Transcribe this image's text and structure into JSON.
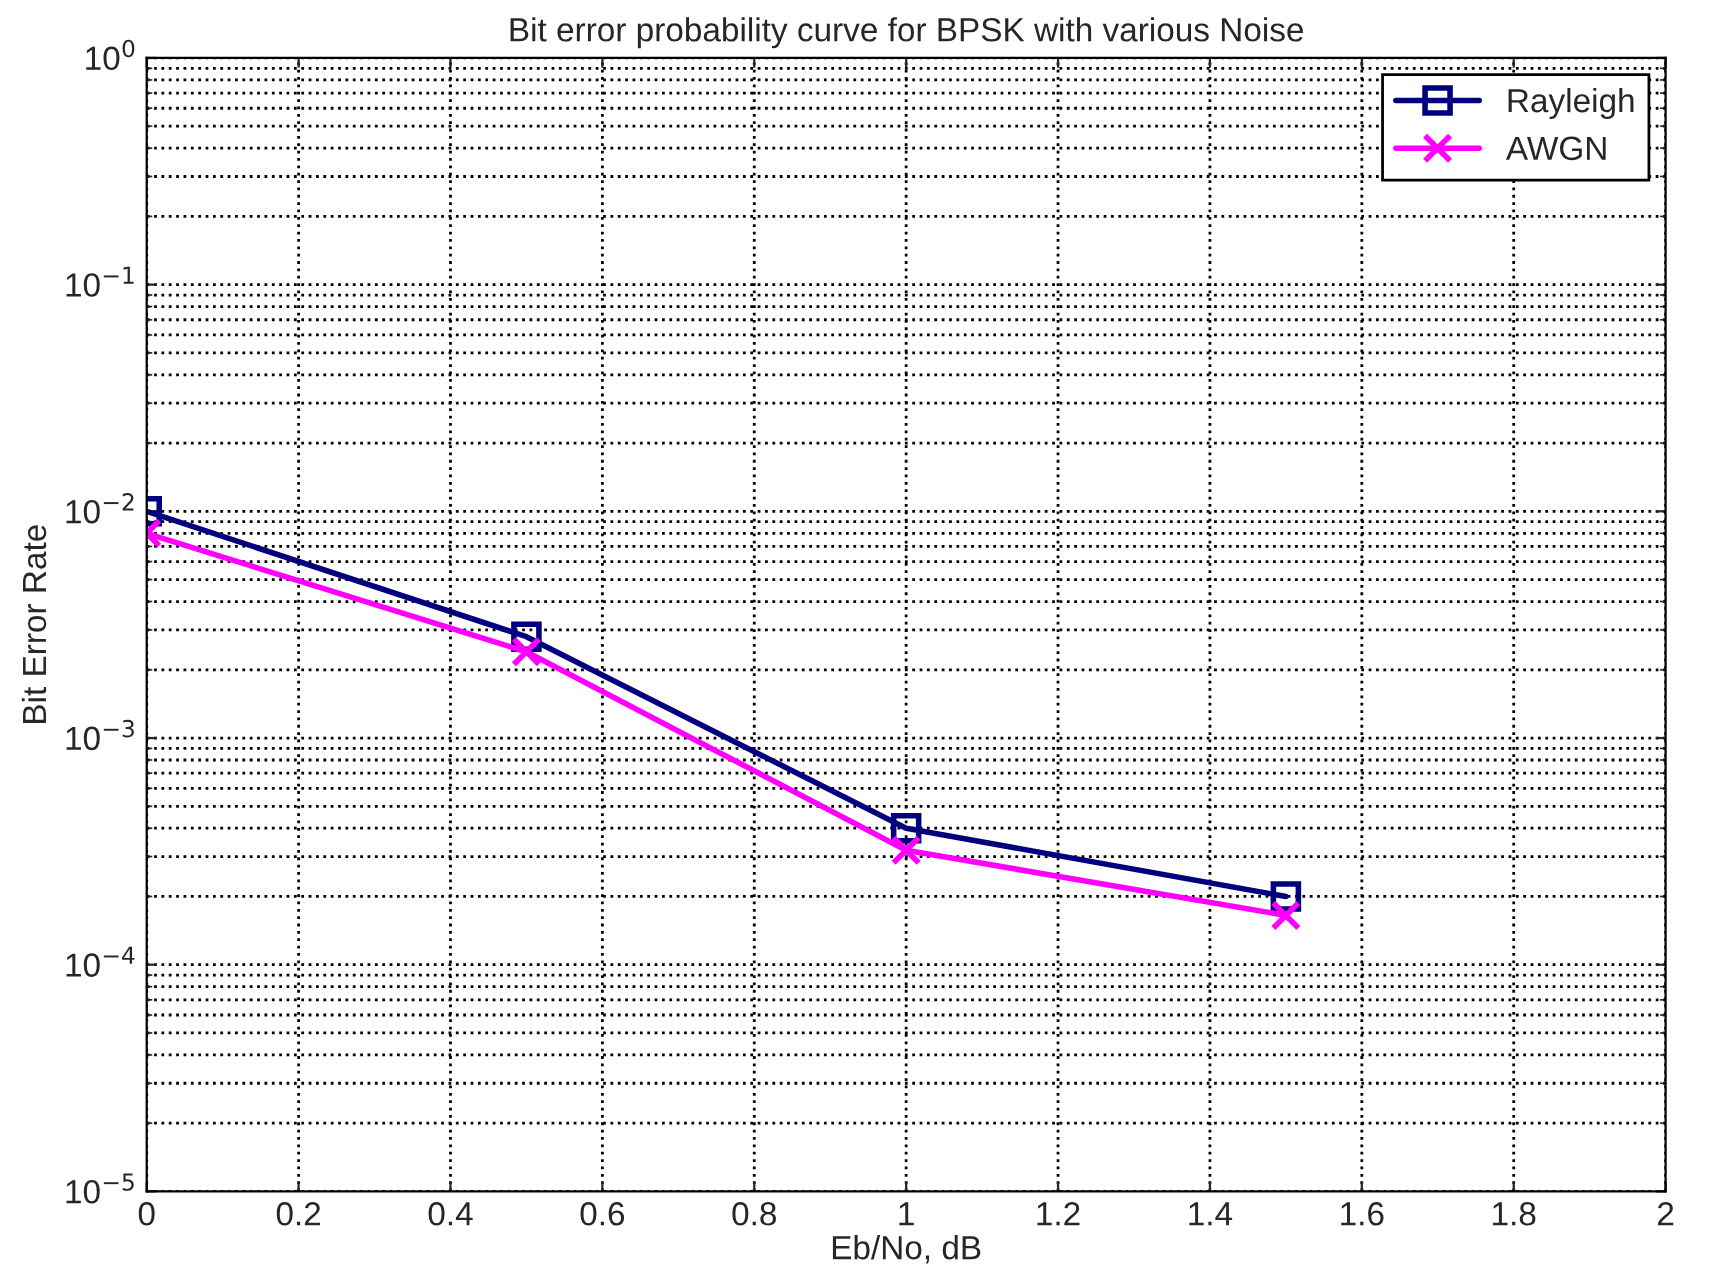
{
  "chart_data": {
    "type": "line",
    "title": "Bit error probability curve for BPSK with various Noise",
    "xlabel": "Eb/No, dB",
    "ylabel": "Bit Error Rate",
    "x": [
      0,
      0.5,
      1,
      1.5
    ],
    "series": [
      {
        "name": "Rayleigh",
        "color": "#00007f",
        "marker": "square",
        "values": [
          0.01,
          0.0028,
          0.0004,
          0.0002
        ]
      },
      {
        "name": "AWGN",
        "color": "#ff00ff",
        "marker": "cross",
        "values": [
          0.008,
          0.0024,
          0.00032,
          0.000165
        ]
      }
    ],
    "log": "y",
    "xlim": [
      0,
      2
    ],
    "xticks": [
      0,
      0.2,
      0.4,
      0.6,
      0.8,
      1,
      1.2,
      1.4,
      1.6,
      1.8,
      2
    ],
    "ylim": [
      1e-05,
      1
    ],
    "yticks": [
      {
        "value": 1e-05,
        "label": "10$^{−5}$"
      },
      {
        "value": 0.0001,
        "label": "10$^{−4}$"
      },
      {
        "value": 0.001,
        "label": "10$^{−3}$"
      },
      {
        "value": 0.01,
        "label": "10$^{−2}$"
      },
      {
        "value": 0.1,
        "label": "10$^{−1}$"
      },
      {
        "value": 1,
        "label": "10$^{0}$"
      }
    ],
    "grid": true,
    "legend": "top right",
    "line_style": "solid"
  }
}
